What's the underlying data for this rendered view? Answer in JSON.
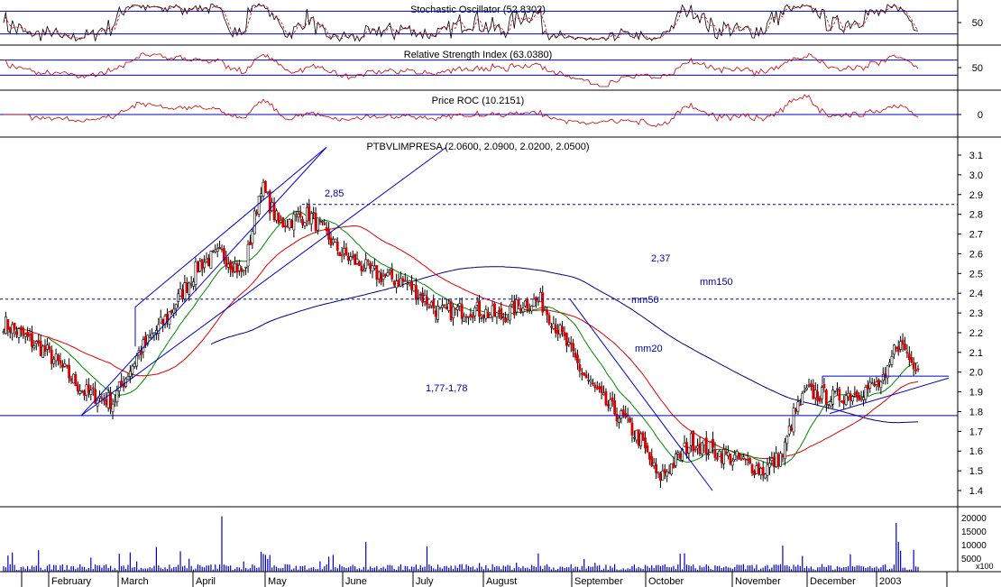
{
  "colors": {
    "price_up": "#ffffff",
    "price_down": "#dd0000",
    "ma20": "#008800",
    "ma50": "#dd0000",
    "ma150": "#000088",
    "trendline": "#0000cc",
    "reference_line": "#0000aa",
    "volume": "#0000cc",
    "oscillator": "#cc0000",
    "grid": "#000000"
  },
  "chart_data": [
    {
      "type": "line",
      "panel": "stochastic",
      "title": "Stochastic Oscillator (52.8302)",
      "y_ticks": [
        "50"
      ],
      "reference_levels": [
        80,
        20
      ]
    },
    {
      "type": "line",
      "panel": "rsi",
      "title": "Relative Strength Index (63.0380)",
      "y_ticks": [
        "50"
      ],
      "reference_levels": [
        70,
        30
      ]
    },
    {
      "type": "line",
      "panel": "roc",
      "title": "Price ROC (10.2151)",
      "y_ticks": [
        "0"
      ],
      "reference_levels": [
        0
      ]
    },
    {
      "type": "candlestick",
      "panel": "price",
      "title": "PTBVLIMPRESA (2.0600, 2.0900, 2.0200, 2.0500)",
      "ylim": [
        1.3,
        3.15
      ],
      "y_ticks": [
        "3.1",
        "3.0",
        "2.9",
        "2.8",
        "2.7",
        "2.6",
        "2.5",
        "2.4",
        "2.3",
        "2.2",
        "2.1",
        "2.0",
        "1.9",
        "1.8",
        "1.7",
        "1.6",
        "1.5",
        "1.4"
      ],
      "x_labels": [
        "February",
        "March",
        "April",
        "May",
        "June",
        "July",
        "August",
        "September",
        "October",
        "November",
        "December",
        "2003"
      ],
      "key_closes": [
        {
          "x": 0,
          "v": 2.25
        },
        {
          "x": 20,
          "v": 2.1
        },
        {
          "x": 37,
          "v": 1.9
        },
        {
          "x": 50,
          "v": 1.85
        },
        {
          "x": 62,
          "v": 2.1
        },
        {
          "x": 75,
          "v": 2.28
        },
        {
          "x": 90,
          "v": 2.55
        },
        {
          "x": 100,
          "v": 2.6
        },
        {
          "x": 110,
          "v": 2.5
        },
        {
          "x": 118,
          "v": 2.95
        },
        {
          "x": 126,
          "v": 2.75
        },
        {
          "x": 140,
          "v": 2.8
        },
        {
          "x": 155,
          "v": 2.6
        },
        {
          "x": 170,
          "v": 2.5
        },
        {
          "x": 185,
          "v": 2.45
        },
        {
          "x": 200,
          "v": 2.3
        },
        {
          "x": 215,
          "v": 2.32
        },
        {
          "x": 228,
          "v": 2.28
        },
        {
          "x": 238,
          "v": 2.35
        },
        {
          "x": 246,
          "v": 2.36
        },
        {
          "x": 255,
          "v": 2.2
        },
        {
          "x": 265,
          "v": 2.0
        },
        {
          "x": 275,
          "v": 1.85
        },
        {
          "x": 285,
          "v": 1.75
        },
        {
          "x": 292,
          "v": 1.65
        },
        {
          "x": 300,
          "v": 1.46
        },
        {
          "x": 308,
          "v": 1.55
        },
        {
          "x": 315,
          "v": 1.65
        },
        {
          "x": 325,
          "v": 1.6
        },
        {
          "x": 338,
          "v": 1.55
        },
        {
          "x": 348,
          "v": 1.5
        },
        {
          "x": 357,
          "v": 1.58
        },
        {
          "x": 362,
          "v": 1.78
        },
        {
          "x": 368,
          "v": 1.9
        },
        {
          "x": 380,
          "v": 1.87
        },
        {
          "x": 392,
          "v": 1.9
        },
        {
          "x": 404,
          "v": 1.95
        },
        {
          "x": 409,
          "v": 2.15
        },
        {
          "x": 413,
          "v": 2.12
        },
        {
          "x": 416,
          "v": 2.05
        }
      ],
      "annotations": [
        {
          "text": "2,85",
          "value": 2.85
        },
        {
          "text": "2,37",
          "value": 2.37
        },
        {
          "text": "mm150"
        },
        {
          "text": "mm50"
        },
        {
          "text": "mm20"
        },
        {
          "text": "1,77-1,78",
          "value": 1.78
        }
      ],
      "series": [
        {
          "name": "mm20"
        },
        {
          "name": "mm50"
        },
        {
          "name": "mm150"
        }
      ]
    },
    {
      "type": "bar",
      "panel": "volume",
      "y_ticks": [
        "20000",
        "15000",
        "10000",
        "5000"
      ],
      "y_tick_bottom": "x100",
      "ylim": [
        0,
        22000
      ]
    }
  ]
}
